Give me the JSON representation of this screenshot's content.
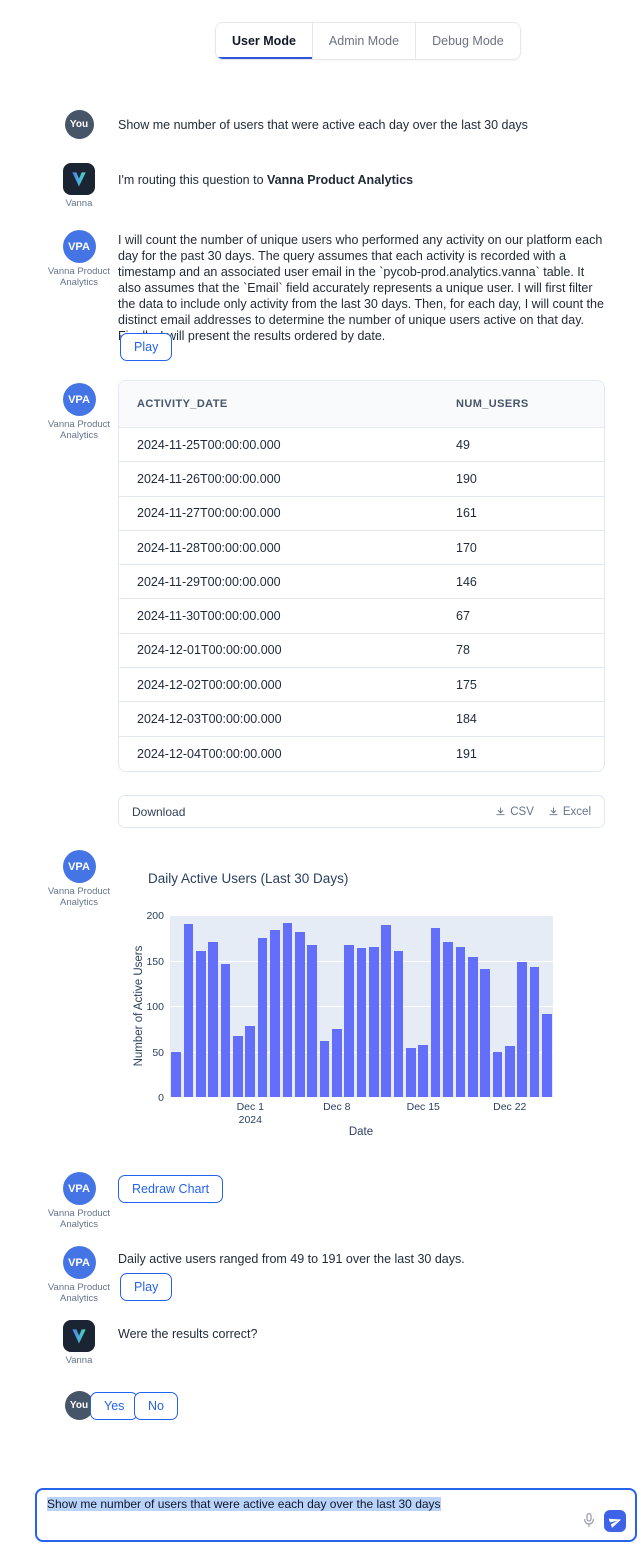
{
  "tabs": {
    "items": [
      {
        "label": "User Mode",
        "active": true
      },
      {
        "label": "Admin Mode",
        "active": false
      },
      {
        "label": "Debug Mode",
        "active": false
      }
    ]
  },
  "avatars": {
    "you": "You",
    "vanna_name": "Vanna",
    "vpa_initials": "VPA",
    "vpa_name_line1": "Vanna Product",
    "vpa_name_line2": "Analytics"
  },
  "conversation": {
    "user_question": "Show me number of users that were active each day over the last 30 days",
    "routing_prefix": "I'm routing this question to ",
    "routing_target": "Vanna Product Analytics",
    "plan_text": "I will count the number of unique users who performed any activity on our platform each day for the past 30 days.  The query assumes that each activity is recorded with a timestamp and an associated user email in the `pycob-prod.analytics.vanna` table.  It also assumes that the `Email` field accurately represents a unique user.  I will first filter the data to include only activity from the last 30 days. Then, for each day, I will count the distinct email addresses to determine the number of unique users active on that day. Finally, I will present the results ordered by date.",
    "play_label": "Play",
    "redraw_label": "Redraw Chart",
    "summary_text": "Daily active users ranged from 49 to 191 over the last 30 days.",
    "feedback_question": "Were the results correct?",
    "yes_label": "Yes",
    "no_label": "No"
  },
  "table": {
    "columns": [
      "ACTIVITY_DATE",
      "NUM_USERS"
    ],
    "rows": [
      [
        "2024-11-25T00:00:00.000",
        "49"
      ],
      [
        "2024-11-26T00:00:00.000",
        "190"
      ],
      [
        "2024-11-27T00:00:00.000",
        "161"
      ],
      [
        "2024-11-28T00:00:00.000",
        "170"
      ],
      [
        "2024-11-29T00:00:00.000",
        "146"
      ],
      [
        "2024-11-30T00:00:00.000",
        "67"
      ],
      [
        "2024-12-01T00:00:00.000",
        "78"
      ],
      [
        "2024-12-02T00:00:00.000",
        "175"
      ],
      [
        "2024-12-03T00:00:00.000",
        "184"
      ],
      [
        "2024-12-04T00:00:00.000",
        "191"
      ]
    ]
  },
  "download": {
    "label": "Download",
    "csv": "CSV",
    "excel": "Excel"
  },
  "chart_data": {
    "type": "bar",
    "title": "Daily Active Users (Last 30 Days)",
    "xlabel": "Date",
    "ylabel": "Number of Active Users",
    "ylim": [
      0,
      200
    ],
    "x": [
      "2024-11-25",
      "2024-11-26",
      "2024-11-27",
      "2024-11-28",
      "2024-11-29",
      "2024-11-30",
      "2024-12-01",
      "2024-12-02",
      "2024-12-03",
      "2024-12-04",
      "2024-12-05",
      "2024-12-06",
      "2024-12-07",
      "2024-12-08",
      "2024-12-09",
      "2024-12-10",
      "2024-12-11",
      "2024-12-12",
      "2024-12-13",
      "2024-12-14",
      "2024-12-15",
      "2024-12-16",
      "2024-12-17",
      "2024-12-18",
      "2024-12-19",
      "2024-12-20",
      "2024-12-21",
      "2024-12-22",
      "2024-12-23",
      "2024-12-24",
      "2024-12-25"
    ],
    "values": [
      49,
      190,
      161,
      170,
      146,
      67,
      78,
      175,
      184,
      191,
      181,
      167,
      62,
      75,
      167,
      164,
      165,
      189,
      161,
      54,
      57,
      186,
      170,
      165,
      154,
      141,
      50,
      56,
      148,
      143,
      91
    ],
    "yticks": [
      0,
      50,
      100,
      150,
      200
    ],
    "xticks": [
      {
        "index": 6,
        "label": "Dec 1",
        "sub": "2024"
      },
      {
        "index": 13,
        "label": "Dec 8"
      },
      {
        "index": 20,
        "label": "Dec 15"
      },
      {
        "index": 27,
        "label": "Dec 22"
      }
    ],
    "grid": true,
    "legend": "none",
    "bar_color": "#636efa",
    "plot_bg": "#e5ecf6"
  },
  "composer": {
    "value": "Show me number of users that were active each day over the last 30 days",
    "value_selected": true
  },
  "colors": {
    "accent": "#2563eb",
    "tab_underline": "#2f54d6",
    "selection": "#b9d3fb"
  }
}
